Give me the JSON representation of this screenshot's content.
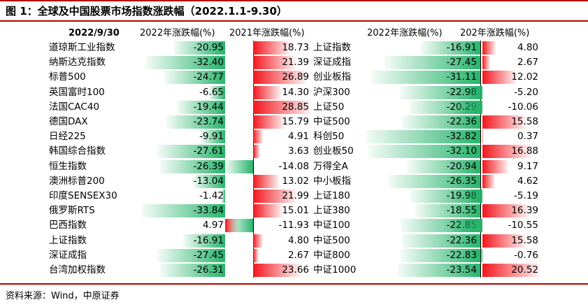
{
  "title": "图 1：全球及中国股票市场指数涨跌幅（2022.1.1-9.30）",
  "source": "资料来源：Wind，中原证券",
  "colors": {
    "negative": "#27b46b",
    "positive": "#f2161d",
    "accent_rule": "#b30000"
  },
  "chart_data": {
    "type": "table",
    "date_header": "2022/9/30",
    "columns": [
      "2022年涨跌幅(%)",
      "2021年涨跌幅(%)",
      "2022年涨跌幅(%)",
      "202年涨跌幅(%)"
    ],
    "global": [
      {
        "name": "道琼斯工业指数",
        "y2022": "-20.95",
        "y2021": "18.73"
      },
      {
        "name": "纳斯达克指数",
        "y2022": "-32.40",
        "y2021": "21.39"
      },
      {
        "name": "标普500",
        "y2022": "-24.77",
        "y2021": "26.89"
      },
      {
        "name": "英国富时100",
        "y2022": "-6.65",
        "y2021": "14.30"
      },
      {
        "name": "法国CAC40",
        "y2022": "-19.44",
        "y2021": "28.85"
      },
      {
        "name": "德国DAX",
        "y2022": "-23.74",
        "y2021": "15.79"
      },
      {
        "name": "日经225",
        "y2022": "-9.91",
        "y2021": "4.91"
      },
      {
        "name": "韩国综合指数",
        "y2022": "-27.61",
        "y2021": "3.63"
      },
      {
        "name": "恒生指数",
        "y2022": "-26.39",
        "y2021": "-14.08"
      },
      {
        "name": "澳洲标普200",
        "y2022": "-13.04",
        "y2021": "13.02"
      },
      {
        "name": "印度SENSEX30",
        "y2022": "-1.42",
        "y2021": "21.99"
      },
      {
        "name": "俄罗斯RTS",
        "y2022": "-33.84",
        "y2021": "15.01"
      },
      {
        "name": "巴西指数",
        "y2022": "4.97",
        "y2021": "-11.93"
      },
      {
        "name": "上证指数",
        "y2022": "-16.91",
        "y2021": "4.80"
      },
      {
        "name": "深证成指",
        "y2022": "-27.45",
        "y2021": "2.67"
      },
      {
        "name": "台湾加权指数",
        "y2022": "-26.31",
        "y2021": "23.66"
      }
    ],
    "china": [
      {
        "name": "上证指数",
        "y2022": "-16.91",
        "y2021": "4.80"
      },
      {
        "name": "深证成指",
        "y2022": "-27.45",
        "y2021": "2.67"
      },
      {
        "name": "创业板指",
        "y2022": "-31.11",
        "y2021": "12.02"
      },
      {
        "name": "沪深300",
        "y2022": "-22.98",
        "y2021": "-5.20"
      },
      {
        "name": "上证50",
        "y2022": "-20.29",
        "y2021": "-10.06"
      },
      {
        "name": "中证500",
        "y2022": "-22.36",
        "y2021": "15.58"
      },
      {
        "name": "科创50",
        "y2022": "-32.82",
        "y2021": "0.37"
      },
      {
        "name": "创业板50",
        "y2022": "-32.10",
        "y2021": "16.88"
      },
      {
        "name": "万得全A",
        "y2022": "-20.94",
        "y2021": "9.17"
      },
      {
        "name": "中小板指",
        "y2022": "-26.35",
        "y2021": "4.62"
      },
      {
        "name": "上证180",
        "y2022": "-19.98",
        "y2021": "-5.19"
      },
      {
        "name": "上证380",
        "y2022": "-18.55",
        "y2021": "16.39"
      },
      {
        "name": "中证100",
        "y2022": "-22.85",
        "y2021": "-10.55"
      },
      {
        "name": "中证500",
        "y2022": "-22.36",
        "y2021": "15.58"
      },
      {
        "name": "中证800",
        "y2022": "-22.83",
        "y2021": "-0.76"
      },
      {
        "name": "中证1000",
        "y2022": "-23.54",
        "y2021": "20.52"
      }
    ]
  }
}
